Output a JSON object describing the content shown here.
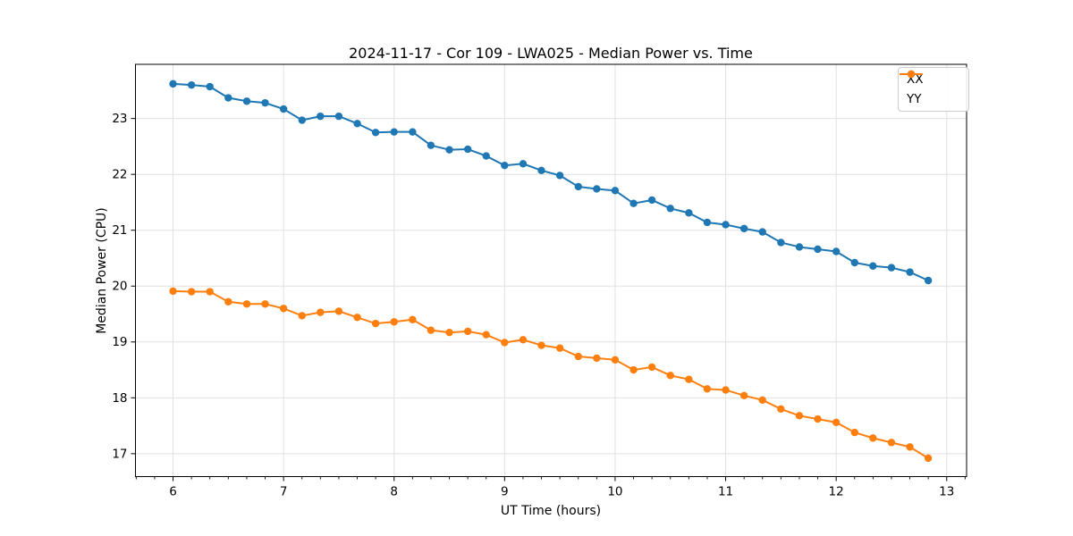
{
  "figure": {
    "title": "2024-11-17 - Cor 109 - LWA025 - Median Power vs. Time",
    "xlabel": "UT Time (hours)",
    "ylabel": "Median Power (CPU)",
    "background": "#ffffff"
  },
  "legend": {
    "position": "upper right",
    "entries": [
      {
        "label": "XX",
        "color": "#1f77b4"
      },
      {
        "label": "YY",
        "color": "#ff7f0e"
      }
    ]
  },
  "chart_data": {
    "type": "line",
    "title": "2024-11-17 - Cor 109 - LWA025 - Median Power vs. Time",
    "xlabel": "UT Time (hours)",
    "ylabel": "Median Power (CPU)",
    "xlim": [
      5.66,
      13.18
    ],
    "ylim": [
      16.59,
      23.97
    ],
    "x_ticks": [
      6,
      7,
      8,
      9,
      10,
      11,
      12,
      13
    ],
    "y_ticks": [
      17,
      18,
      19,
      20,
      21,
      22,
      23
    ],
    "minor_x_step": 0.166667,
    "grid": true,
    "grid_color": "#e0e0e0",
    "legend_position": "upper right",
    "marker": "o",
    "x": [
      6.0,
      6.167,
      6.333,
      6.5,
      6.667,
      6.833,
      7.0,
      7.167,
      7.333,
      7.5,
      7.667,
      7.833,
      8.0,
      8.167,
      8.333,
      8.5,
      8.667,
      8.833,
      9.0,
      9.167,
      9.333,
      9.5,
      9.667,
      9.833,
      10.0,
      10.167,
      10.333,
      10.5,
      10.667,
      10.833,
      11.0,
      11.167,
      11.333,
      11.5,
      11.667,
      11.833,
      12.0,
      12.167,
      12.333,
      12.5,
      12.667,
      12.833
    ],
    "series": [
      {
        "name": "XX",
        "color": "#1f77b4",
        "values": [
          23.62,
          23.6,
          23.57,
          23.37,
          23.31,
          23.28,
          23.17,
          22.97,
          23.04,
          23.04,
          22.91,
          22.75,
          22.76,
          22.76,
          22.52,
          22.44,
          22.45,
          22.33,
          22.16,
          22.19,
          22.07,
          21.98,
          21.78,
          21.74,
          21.71,
          21.48,
          21.54,
          21.39,
          21.31,
          21.14,
          21.1,
          21.03,
          20.97,
          20.78,
          20.7,
          20.66,
          20.62,
          20.42,
          20.36,
          20.33,
          20.25,
          20.1
        ]
      },
      {
        "name": "YY",
        "color": "#ff7f0e",
        "values": [
          19.91,
          19.9,
          19.9,
          19.72,
          19.68,
          19.68,
          19.6,
          19.47,
          19.53,
          19.55,
          19.44,
          19.33,
          19.36,
          19.4,
          19.21,
          19.17,
          19.19,
          19.13,
          18.99,
          19.04,
          18.94,
          18.89,
          18.74,
          18.71,
          18.68,
          18.5,
          18.55,
          18.4,
          18.33,
          18.16,
          18.14,
          18.04,
          17.96,
          17.8,
          17.68,
          17.62,
          17.56,
          17.38,
          17.28,
          17.2,
          17.12,
          16.92
        ]
      }
    ]
  }
}
